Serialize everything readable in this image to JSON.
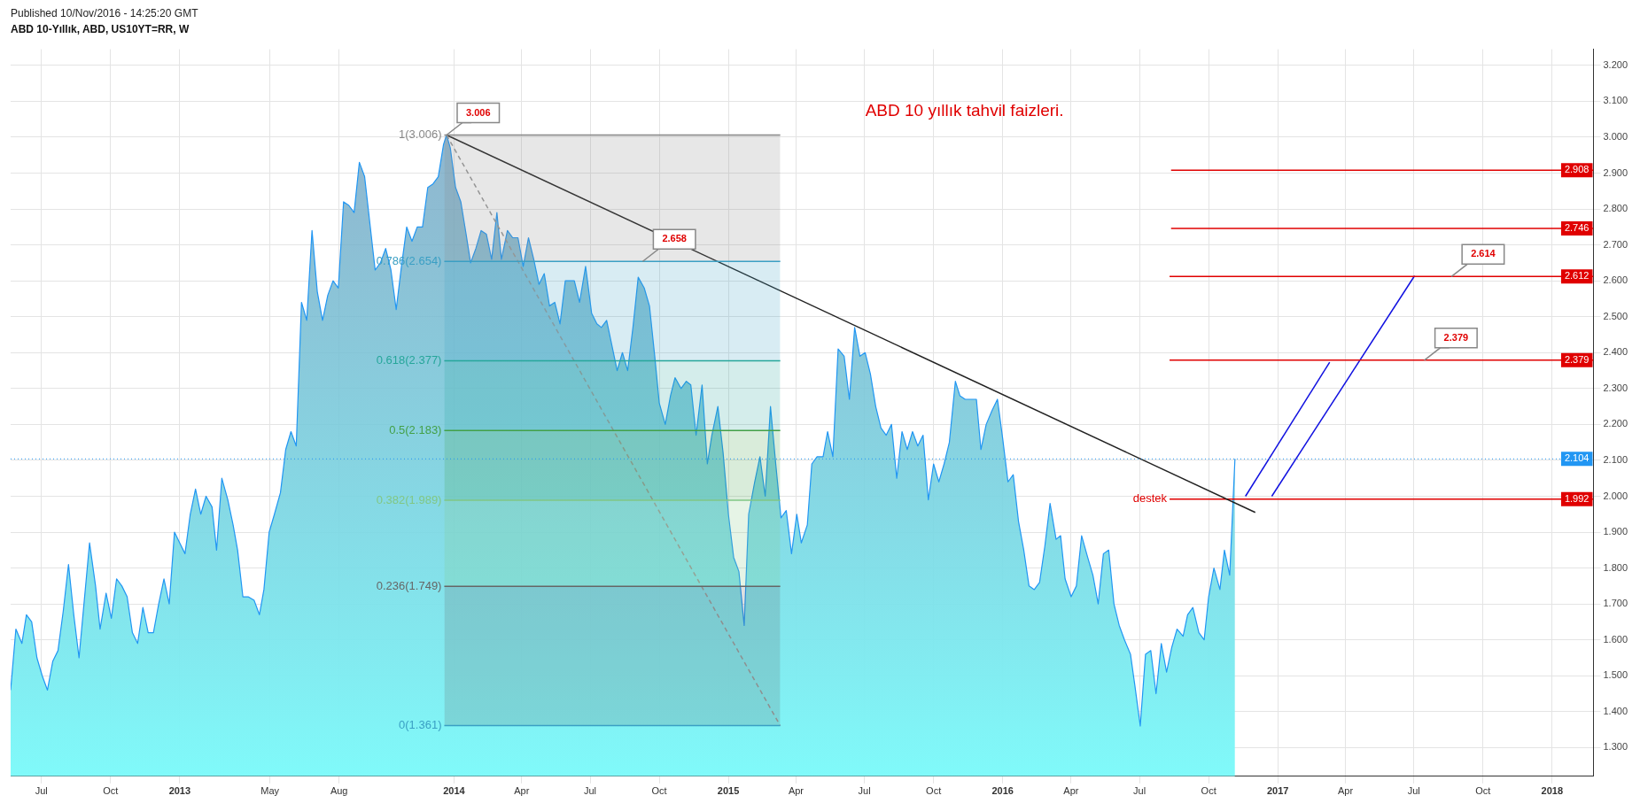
{
  "chart_data": {
    "type": "area",
    "title": "ABD 10-Yıllık, ABD, US10YT=RR, W",
    "subtitle": "Published 10/Nov/2016 - 14:25:20 GMT",
    "xlim": [
      "2012-05-21",
      "2018-02-25"
    ],
    "xticks": [
      {
        "value": "2012-07-01",
        "label": "Jul"
      },
      {
        "value": "2012-10-01",
        "label": "Oct"
      },
      {
        "value": "2013-01-01",
        "label": "2013"
      },
      {
        "value": "2013-05-01",
        "label": "May"
      },
      {
        "value": "2013-08-01",
        "label": "Aug"
      },
      {
        "value": "2014-01-01",
        "label": "2014"
      },
      {
        "value": "2014-04-01",
        "label": "Apr"
      },
      {
        "value": "2014-07-01",
        "label": "Jul"
      },
      {
        "value": "2014-10-01",
        "label": "Oct"
      },
      {
        "value": "2015-01-01",
        "label": "2015"
      },
      {
        "value": "2015-04-01",
        "label": "Apr"
      },
      {
        "value": "2015-07-01",
        "label": "Jul"
      },
      {
        "value": "2015-10-01",
        "label": "Oct"
      },
      {
        "value": "2016-01-01",
        "label": "2016"
      },
      {
        "value": "2016-04-01",
        "label": "Apr"
      },
      {
        "value": "2016-07-01",
        "label": "Jul"
      },
      {
        "value": "2016-10-01",
        "label": "Oct"
      },
      {
        "value": "2017-01-01",
        "label": "2017"
      },
      {
        "value": "2017-04-01",
        "label": "Apr"
      },
      {
        "value": "2017-07-01",
        "label": "Jul"
      },
      {
        "value": "2017-10-01",
        "label": "Oct"
      },
      {
        "value": "2018-01-01",
        "label": "2018"
      }
    ],
    "ylim": [
      1.22,
      3.245
    ],
    "yticks": [
      {
        "value": 1.3,
        "label": "1.300"
      },
      {
        "value": 1.4,
        "label": "1.400"
      },
      {
        "value": 1.5,
        "label": "1.500"
      },
      {
        "value": 1.6,
        "label": "1.600"
      },
      {
        "value": 1.7,
        "label": "1.700"
      },
      {
        "value": 1.8,
        "label": "1.800"
      },
      {
        "value": 1.9,
        "label": "1.900"
      },
      {
        "value": 2.0,
        "label": "2.000"
      },
      {
        "value": 2.1,
        "label": "2.100"
      },
      {
        "value": 2.2,
        "label": "2.200"
      },
      {
        "value": 2.3,
        "label": "2.300"
      },
      {
        "value": 2.4,
        "label": "2.400"
      },
      {
        "value": 2.5,
        "label": "2.500"
      },
      {
        "value": 2.6,
        "label": "2.600"
      },
      {
        "value": 2.7,
        "label": "2.700"
      },
      {
        "value": 2.8,
        "label": "2.800"
      },
      {
        "value": 2.9,
        "label": "2.900"
      },
      {
        "value": 3.0,
        "label": "3.000"
      },
      {
        "value": 3.1,
        "label": "3.100"
      },
      {
        "value": 3.2,
        "label": "3.200"
      }
    ],
    "grid": true,
    "series": [
      {
        "color": "#2196f3",
        "x": [
          "2012-05-21",
          "2012-05-28",
          "2012-06-05",
          "2012-06-11",
          "2012-06-18",
          "2012-06-25",
          "2012-07-02",
          "2012-07-09",
          "2012-07-16",
          "2012-07-23",
          "2012-07-30",
          "2012-08-06",
          "2012-08-13",
          "2012-08-20",
          "2012-08-27",
          "2012-09-03",
          "2012-09-11",
          "2012-09-17",
          "2012-09-25",
          "2012-10-02",
          "2012-10-09",
          "2012-10-16",
          "2012-10-23",
          "2012-10-30",
          "2012-11-06",
          "2012-11-13",
          "2012-11-20",
          "2012-11-27",
          "2012-12-04",
          "2012-12-11",
          "2012-12-18",
          "2012-12-25",
          "2013-01-01",
          "2013-01-08",
          "2013-01-15",
          "2013-01-22",
          "2013-01-29",
          "2013-02-05",
          "2013-02-13",
          "2013-02-19",
          "2013-02-26",
          "2013-03-06",
          "2013-03-13",
          "2013-03-19",
          "2013-03-26",
          "2013-04-02",
          "2013-04-10",
          "2013-04-17",
          "2013-04-23",
          "2013-04-30",
          "2013-05-07",
          "2013-05-15",
          "2013-05-22",
          "2013-05-29",
          "2013-06-05",
          "2013-06-12",
          "2013-06-19",
          "2013-06-26",
          "2013-07-03",
          "2013-07-10",
          "2013-07-17",
          "2013-07-24",
          "2013-07-31",
          "2013-08-07",
          "2013-08-14",
          "2013-08-21",
          "2013-08-28",
          "2013-09-04",
          "2013-09-11",
          "2013-09-18",
          "2013-09-25",
          "2013-10-02",
          "2013-10-09",
          "2013-10-16",
          "2013-10-23",
          "2013-10-30",
          "2013-11-06",
          "2013-11-13",
          "2013-11-20",
          "2013-11-27",
          "2013-12-04",
          "2013-12-11",
          "2013-12-18",
          "2013-12-22",
          "2013-12-27",
          "2014-01-03",
          "2014-01-10",
          "2014-01-17",
          "2014-01-23",
          "2014-01-30",
          "2014-02-06",
          "2014-02-13",
          "2014-02-20",
          "2014-02-27",
          "2014-03-05",
          "2014-03-13",
          "2014-03-20",
          "2014-03-27",
          "2014-04-03",
          "2014-04-10",
          "2014-04-17",
          "2014-04-24",
          "2014-05-01",
          "2014-05-08",
          "2014-05-15",
          "2014-05-22",
          "2014-05-29",
          "2014-06-03",
          "2014-06-10",
          "2014-06-17",
          "2014-06-25",
          "2014-07-03",
          "2014-07-10",
          "2014-07-16",
          "2014-07-23",
          "2014-07-30",
          "2014-08-06",
          "2014-08-13",
          "2014-08-20",
          "2014-08-27",
          "2014-09-03",
          "2014-09-11",
          "2014-09-18",
          "2014-09-25",
          "2014-10-01",
          "2014-10-09",
          "2014-10-16",
          "2014-10-22",
          "2014-10-30",
          "2014-11-06",
          "2014-11-12",
          "2014-11-19",
          "2014-11-27",
          "2014-12-04",
          "2014-12-10",
          "2014-12-18",
          "2014-12-25",
          "2015-01-01",
          "2015-01-08",
          "2015-01-15",
          "2015-01-22",
          "2015-01-28",
          "2015-02-05",
          "2015-02-12",
          "2015-02-19",
          "2015-02-26",
          "2015-03-05",
          "2015-03-12",
          "2015-03-19",
          "2015-03-26",
          "2015-04-02",
          "2015-04-08",
          "2015-04-16",
          "2015-04-22",
          "2015-04-29",
          "2015-05-07",
          "2015-05-13",
          "2015-05-20",
          "2015-05-27",
          "2015-06-04",
          "2015-06-11",
          "2015-06-18",
          "2015-06-25",
          "2015-07-02",
          "2015-07-09",
          "2015-07-16",
          "2015-07-23",
          "2015-07-30",
          "2015-08-06",
          "2015-08-13",
          "2015-08-20",
          "2015-08-27",
          "2015-09-03",
          "2015-09-10",
          "2015-09-17",
          "2015-09-24",
          "2015-10-01",
          "2015-10-08",
          "2015-10-15",
          "2015-10-22",
          "2015-10-30",
          "2015-11-05",
          "2015-11-12",
          "2015-11-19",
          "2015-11-27",
          "2015-12-03",
          "2015-12-10",
          "2015-12-18",
          "2015-12-25",
          "2016-01-01",
          "2016-01-08",
          "2016-01-15",
          "2016-01-22",
          "2016-01-29",
          "2016-02-05",
          "2016-02-12",
          "2016-02-19",
          "2016-02-26",
          "2016-03-04",
          "2016-03-12",
          "2016-03-18",
          "2016-03-24",
          "2016-04-01",
          "2016-04-08",
          "2016-04-15",
          "2016-04-23",
          "2016-04-30",
          "2016-05-07",
          "2016-05-14",
          "2016-05-21",
          "2016-05-28",
          "2016-06-04",
          "2016-06-11",
          "2016-06-19",
          "2016-06-25",
          "2016-07-02",
          "2016-07-09",
          "2016-07-16",
          "2016-07-23",
          "2016-07-30",
          "2016-08-06",
          "2016-08-13",
          "2016-08-20",
          "2016-08-28",
          "2016-09-03",
          "2016-09-10",
          "2016-09-18",
          "2016-09-25",
          "2016-10-01",
          "2016-10-08",
          "2016-10-16",
          "2016-10-22",
          "2016-10-29",
          "2016-11-05"
        ],
        "values": [
          1.46,
          1.63,
          1.59,
          1.67,
          1.65,
          1.55,
          1.5,
          1.46,
          1.54,
          1.57,
          1.68,
          1.81,
          1.67,
          1.55,
          1.71,
          1.87,
          1.75,
          1.63,
          1.73,
          1.66,
          1.77,
          1.75,
          1.72,
          1.62,
          1.59,
          1.69,
          1.62,
          1.62,
          1.7,
          1.77,
          1.7,
          1.9,
          1.87,
          1.84,
          1.95,
          2.02,
          1.95,
          2.0,
          1.97,
          1.85,
          2.05,
          1.99,
          1.92,
          1.85,
          1.72,
          1.72,
          1.71,
          1.67,
          1.74,
          1.9,
          1.95,
          2.01,
          2.13,
          2.18,
          2.14,
          2.54,
          2.49,
          2.74,
          2.57,
          2.49,
          2.56,
          2.6,
          2.58,
          2.82,
          2.81,
          2.79,
          2.93,
          2.89,
          2.76,
          2.63,
          2.65,
          2.69,
          2.63,
          2.52,
          2.64,
          2.75,
          2.71,
          2.75,
          2.75,
          2.86,
          2.87,
          2.89,
          2.98,
          3.006,
          2.97,
          2.86,
          2.82,
          2.73,
          2.65,
          2.69,
          2.74,
          2.73,
          2.66,
          2.79,
          2.66,
          2.74,
          2.72,
          2.72,
          2.64,
          2.72,
          2.66,
          2.59,
          2.62,
          2.53,
          2.54,
          2.48,
          2.6,
          2.6,
          2.6,
          2.54,
          2.64,
          2.51,
          2.48,
          2.47,
          2.49,
          2.42,
          2.35,
          2.4,
          2.35,
          2.47,
          2.61,
          2.58,
          2.53,
          2.39,
          2.26,
          2.2,
          2.28,
          2.33,
          2.3,
          2.32,
          2.31,
          2.17,
          2.31,
          2.09,
          2.17,
          2.25,
          2.12,
          1.95,
          1.83,
          1.79,
          1.64,
          1.95,
          2.04,
          2.11,
          2.0,
          2.25,
          2.09,
          1.94,
          1.96,
          1.84,
          1.95,
          1.87,
          1.92,
          2.09,
          2.11,
          2.11,
          2.18,
          2.11,
          2.41,
          2.39,
          2.27,
          2.47,
          2.39,
          2.4,
          2.34,
          2.25,
          2.19,
          2.17,
          2.2,
          2.05,
          2.18,
          2.13,
          2.18,
          2.14,
          2.17,
          1.99,
          2.09,
          2.04,
          2.09,
          2.15,
          2.32,
          2.28,
          2.27,
          2.27,
          2.27,
          2.13,
          2.2,
          2.24,
          2.27,
          2.16,
          2.04,
          2.06,
          1.93,
          1.85,
          1.75,
          1.74,
          1.76,
          1.86,
          1.98,
          1.88,
          1.89,
          1.77,
          1.72,
          1.75,
          1.89,
          1.83,
          1.78,
          1.7,
          1.84,
          1.85,
          1.7,
          1.64,
          1.6,
          1.56,
          1.47,
          1.36,
          1.56,
          1.57,
          1.45,
          1.59,
          1.51,
          1.58,
          1.63,
          1.61,
          1.67,
          1.69,
          1.62,
          1.6,
          1.72,
          1.8,
          1.74,
          1.85,
          1.78,
          2.104
        ]
      },
      {
        "type": "line",
        "name": "0(1.361)",
        "color": "#3a9fc4",
        "x": [
          "2013-12-19",
          "2015-03-11"
        ],
        "values": [
          1.361,
          1.361
        ]
      },
      {
        "type": "area",
        "name": "0.236(1.749)",
        "color": "#666666",
        "x": [
          "2013-12-19",
          "2015-03-11"
        ],
        "values": [
          1.749,
          1.749
        ]
      },
      {
        "type": "area",
        "name": "0.382(1.989)",
        "color": "#81c784",
        "x": [
          "2013-12-19",
          "2015-03-11"
        ],
        "values": [
          1.989,
          1.989
        ]
      },
      {
        "type": "area",
        "name": "0.5(2.183)",
        "color": "#43a047",
        "x": [
          "2013-12-19",
          "2015-03-11"
        ],
        "values": [
          2.183,
          2.183
        ]
      },
      {
        "type": "area",
        "name": "0.618(2.377)",
        "color": "#26a69a",
        "x": [
          "2013-12-19",
          "2015-03-11"
        ],
        "values": [
          2.377,
          2.377
        ]
      },
      {
        "type": "area",
        "name": "0.786(2.654)",
        "color": "#3a9fc4",
        "x": [
          "2013-12-19",
          "2015-03-11"
        ],
        "values": [
          2.654,
          2.654
        ]
      },
      {
        "type": "area",
        "name": "1(3.006)",
        "color": "#888888",
        "x": [
          "2013-12-19",
          "2015-03-11"
        ],
        "values": [
          3.006,
          3.006
        ]
      },
      {
        "type": "line",
        "color": "#999999",
        "line_style": "dashed",
        "x": [
          "2013-12-22",
          "2015-03-11"
        ],
        "values": [
          3.006,
          1.361
        ]
      },
      {
        "type": "line",
        "color": "#222222",
        "x": [
          "2013-12-22",
          "2016-12-02"
        ],
        "values": [
          3.006,
          1.955
        ]
      },
      {
        "type": "line",
        "color": "#e00000",
        "x": [
          "2016-08-12",
          "2018-02-25"
        ],
        "values": [
          2.908,
          2.908
        ],
        "value_labels": [
          null,
          "2.908"
        ]
      },
      {
        "type": "line",
        "color": "#e00000",
        "x": [
          "2016-08-12",
          "2018-02-25"
        ],
        "values": [
          2.746,
          2.746
        ],
        "value_labels": [
          null,
          "2.746"
        ]
      },
      {
        "type": "line",
        "color": "#e00000",
        "x": [
          "2016-08-10",
          "2018-02-25"
        ],
        "values": [
          2.612,
          2.612
        ],
        "value_labels": [
          null,
          "2.612"
        ]
      },
      {
        "type": "line",
        "color": "#e00000",
        "x": [
          "2016-08-10",
          "2018-02-25"
        ],
        "values": [
          2.379,
          2.379
        ],
        "value_labels": [
          null,
          "2.379"
        ]
      },
      {
        "type": "line",
        "name": "destek",
        "color": "#e00000",
        "x": [
          "2016-08-10",
          "2018-02-25"
        ],
        "values": [
          1.992,
          1.992
        ],
        "value_labels": [
          null,
          "1.992"
        ]
      },
      {
        "type": "line",
        "color": "#1010e0",
        "x": [
          "2016-11-19",
          "2017-03-11"
        ],
        "values": [
          2.0,
          2.373
        ]
      },
      {
        "type": "line",
        "color": "#1010e0",
        "x": [
          "2016-12-24",
          "2017-07-02"
        ],
        "values": [
          2.0,
          2.614
        ]
      }
    ],
    "ref_lines": [
      {
        "axis": "y",
        "value": 2.104,
        "label": "2.104",
        "color": "#2196f3",
        "line_style": "dotted"
      }
    ],
    "annotations": [
      "ABD 10 yıllık tahvil faizleri.",
      {
        "text": "3.006",
        "x": "2013-12-22",
        "y": 3.006
      },
      {
        "text": "2.658",
        "x": "2014-09-09",
        "y": 2.654
      },
      {
        "text": "2.614",
        "x": "2017-08-20",
        "y": 2.612
      },
      {
        "text": "2.379",
        "x": "2017-07-15",
        "y": 2.379
      }
    ]
  }
}
